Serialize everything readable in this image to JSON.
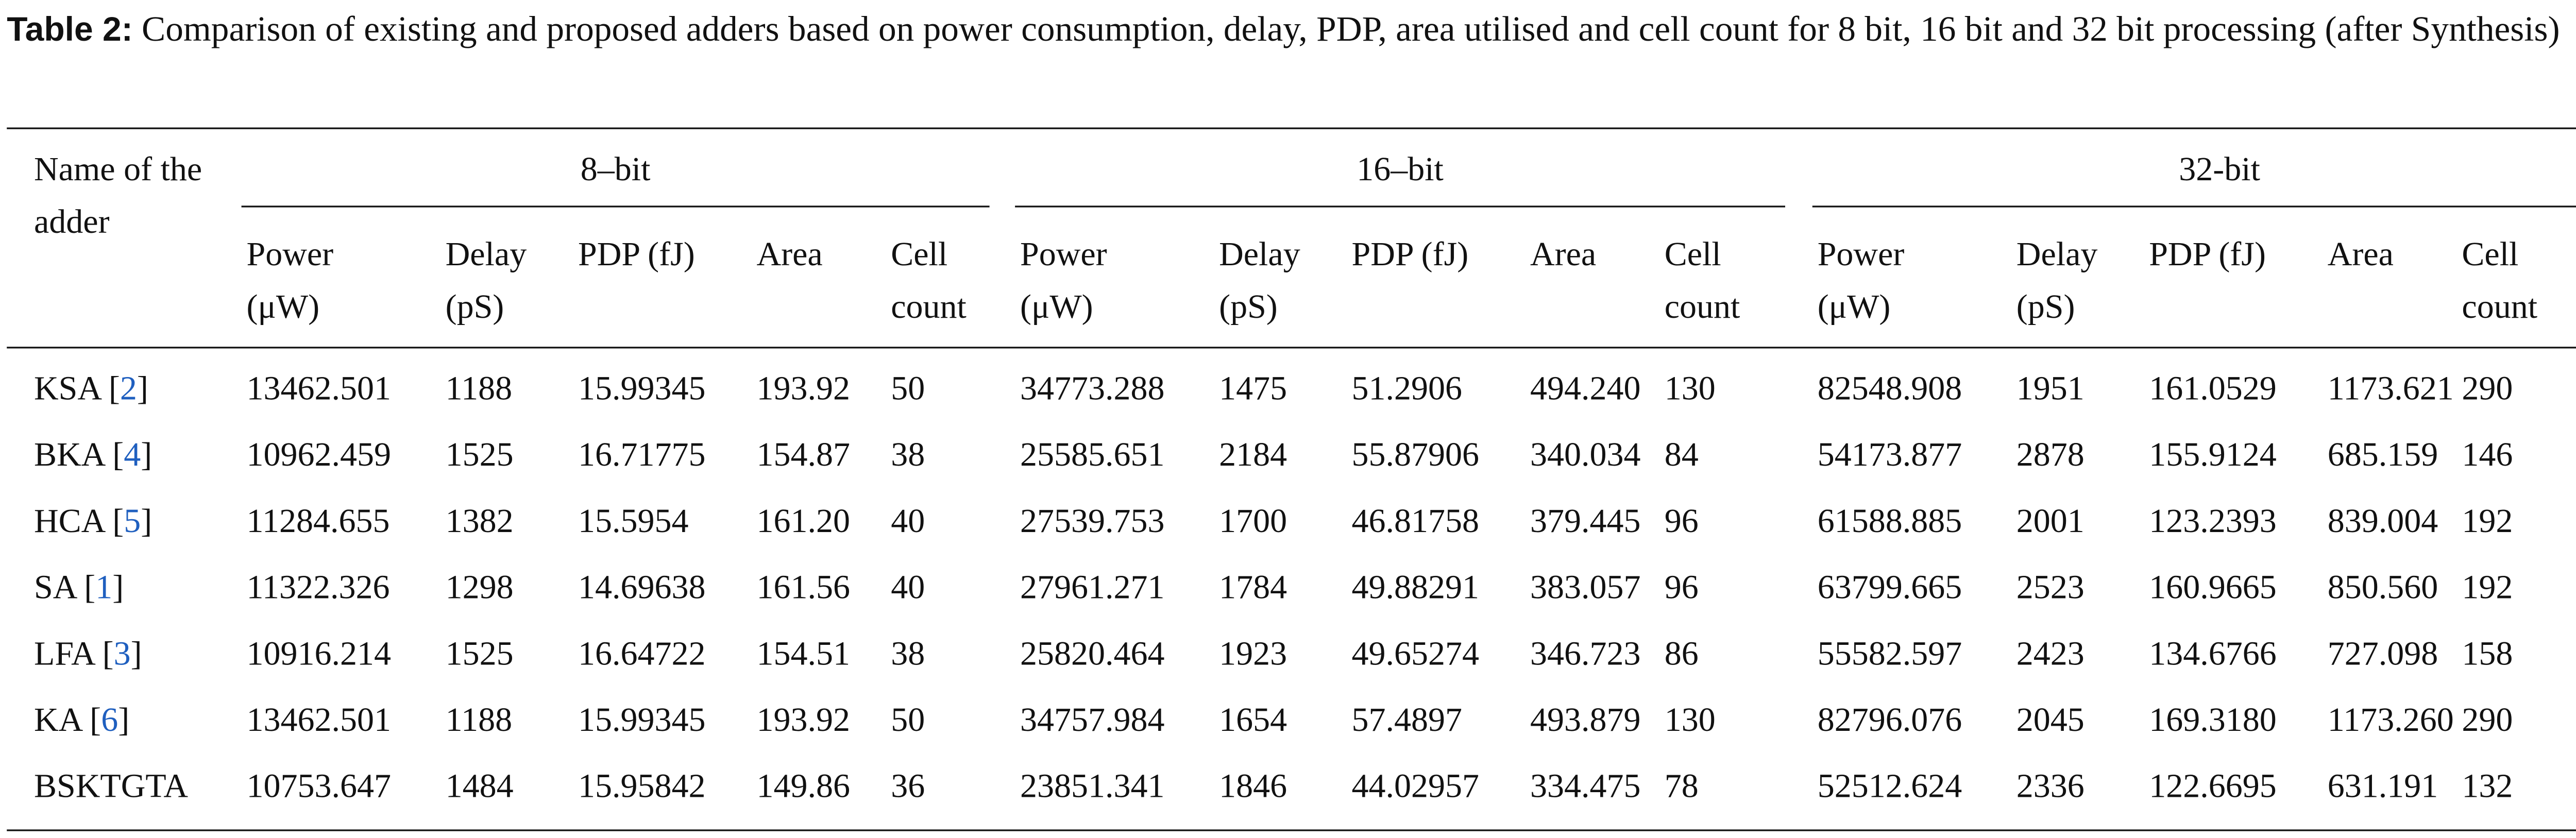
{
  "caption": {
    "label": "Table 2:",
    "text": "Comparison of existing and proposed adders based on power consumption, delay, PDP, area utilised and cell count for 8 bit, 16 bit and 32 bit processing (after Synthesis)"
  },
  "table": {
    "corner": "Name of the adder",
    "groups": [
      "8–bit",
      "16–bit",
      "32-bit"
    ],
    "columns": [
      "Power (μW)",
      "Delay (pS)",
      "PDP (fJ)",
      "Area",
      "Cell count"
    ],
    "rows": [
      {
        "label": [
          "KSA [",
          "2",
          "]"
        ],
        "cells": [
          "13462.501",
          "1188",
          "15.99345",
          "193.92",
          "50",
          "34773.288",
          "1475",
          "51.2906",
          "494.240",
          "130",
          "82548.908",
          "1951",
          "161.0529",
          "1173.621",
          "290"
        ]
      },
      {
        "label": [
          "BKA [",
          "4",
          "]"
        ],
        "cells": [
          "10962.459",
          "1525",
          "16.71775",
          "154.87",
          "38",
          "25585.651",
          "2184",
          "55.87906",
          "340.034",
          "84",
          "54173.877",
          "2878",
          "155.9124",
          "685.159",
          "146"
        ]
      },
      {
        "label": [
          "HCA [",
          "5",
          "]"
        ],
        "cells": [
          "11284.655",
          "1382",
          "15.5954",
          "161.20",
          "40",
          "27539.753",
          "1700",
          "46.81758",
          "379.445",
          "96",
          "61588.885",
          "2001",
          "123.2393",
          "839.004",
          "192"
        ]
      },
      {
        "label": [
          "SA [",
          "1",
          "]"
        ],
        "cells": [
          "11322.326",
          "1298",
          "14.69638",
          "161.56",
          "40",
          "27961.271",
          "1784",
          "49.88291",
          "383.057",
          "96",
          "63799.665",
          "2523",
          "160.9665",
          "850.560",
          "192"
        ]
      },
      {
        "label": [
          "LFA [",
          "3",
          "]"
        ],
        "cells": [
          "10916.214",
          "1525",
          "16.64722",
          "154.51",
          "38",
          "25820.464",
          "1923",
          "49.65274",
          "346.723",
          "86",
          "55582.597",
          "2423",
          "134.6766",
          "727.098",
          "158"
        ]
      },
      {
        "label": [
          "KA [",
          "6",
          "]"
        ],
        "cells": [
          "13462.501",
          "1188",
          "15.99345",
          "193.92",
          "50",
          "34757.984",
          "1654",
          "57.4897",
          "493.879",
          "130",
          "82796.076",
          "2045",
          "169.3180",
          "1173.260",
          "290"
        ]
      },
      {
        "label": [
          "BSKTGTA"
        ],
        "cells": [
          "10753.647",
          "1484",
          "15.95842",
          "149.86",
          "36",
          "23851.341",
          "1846",
          "44.02957",
          "334.475",
          "78",
          "52512.624",
          "2336",
          "122.6695",
          "631.191",
          "132"
        ]
      }
    ]
  }
}
